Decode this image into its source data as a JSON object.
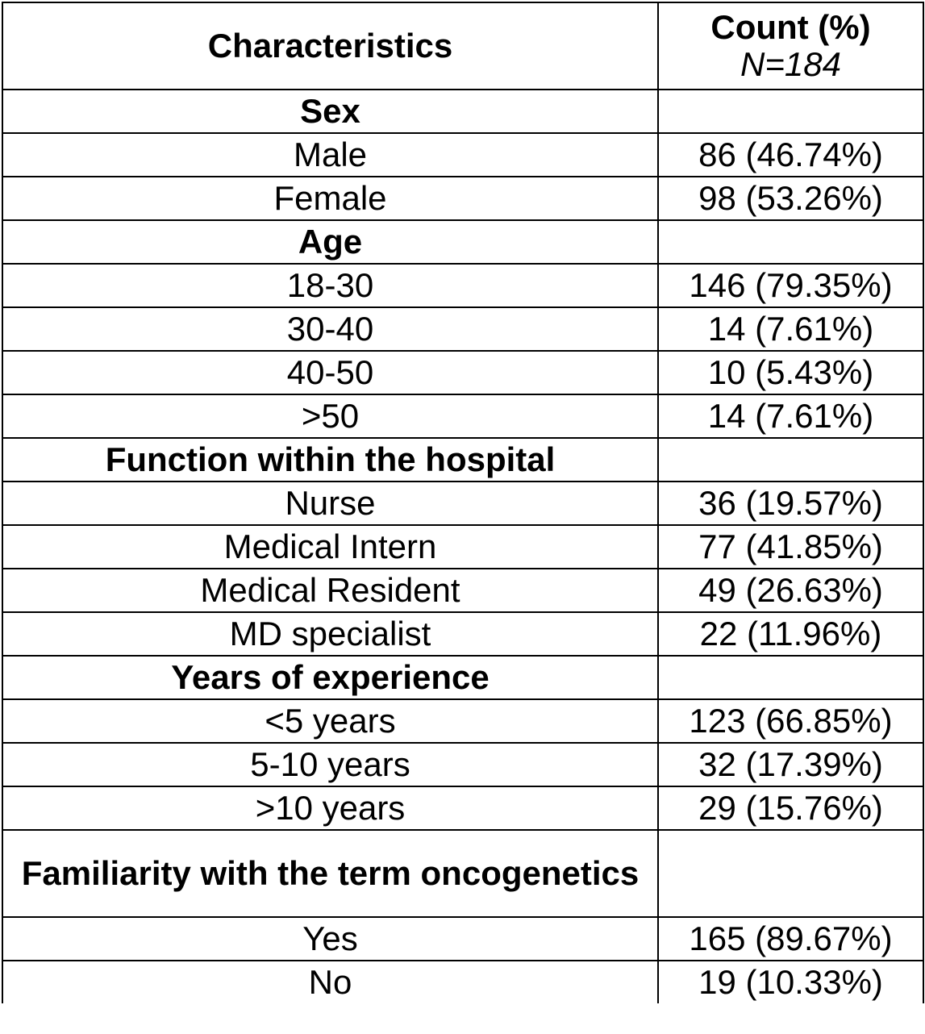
{
  "header": {
    "characteristics": "Characteristics",
    "count_title": "Count (%)",
    "n_label": "N=184"
  },
  "sections": [
    {
      "category": "Sex",
      "rows": [
        {
          "label": "Male",
          "value": "86 (46.74%)"
        },
        {
          "label": "Female",
          "value": "98 (53.26%)"
        }
      ]
    },
    {
      "category": "Age",
      "rows": [
        {
          "label": "18-30",
          "value": "146 (79.35%)"
        },
        {
          "label": "30-40",
          "value": "14 (7.61%)"
        },
        {
          "label": "40-50",
          "value": "10 (5.43%)"
        },
        {
          "label": ">50",
          "value": "14 (7.61%)"
        }
      ]
    },
    {
      "category": "Function within the hospital",
      "rows": [
        {
          "label": "Nurse",
          "value": "36 (19.57%)"
        },
        {
          "label": "Medical Intern",
          "value": "77 (41.85%)"
        },
        {
          "label": "Medical Resident",
          "value": "49 (26.63%)"
        },
        {
          "label": "MD specialist",
          "value": "22 (11.96%)"
        }
      ]
    },
    {
      "category": "Years of experience",
      "rows": [
        {
          "label": "<5 years",
          "value": "123 (66.85%)"
        },
        {
          "label": "5-10 years",
          "value": "32 (17.39%)"
        },
        {
          "label": ">10 years",
          "value": "29 (15.76%)"
        }
      ]
    },
    {
      "category": "Familiarity with the term oncogenetics",
      "rows": [
        {
          "label": "Yes",
          "value": "165 (89.67%)"
        },
        {
          "label": "No",
          "value": "19 (10.33%)"
        }
      ]
    }
  ]
}
